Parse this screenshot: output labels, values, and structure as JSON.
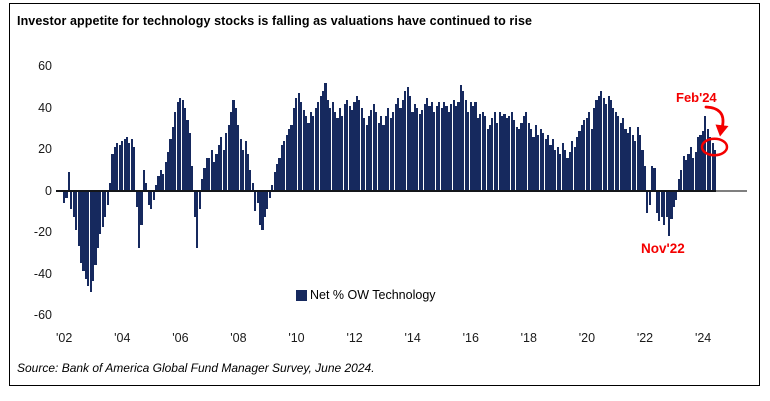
{
  "title": "Investor appetite for technology stocks is falling as valuations have continued to rise",
  "source": "Source: Bank of America Global Fund Manager Survey, June 2024.",
  "legend": {
    "label": "Net % OW Technology"
  },
  "annotations": {
    "peak_label": "Feb'24",
    "trough_label": "Nov'22",
    "annotation_color": "#f40000"
  },
  "colors": {
    "bar": "#16295e",
    "axis_line": "#14161a",
    "axis_line_extension": "#7f7f7f",
    "annotation_red": "#f40000"
  },
  "chart_data": {
    "type": "bar",
    "title": "Investor appetite for technology stocks is falling as valuations have continued to rise",
    "series_name": "Net % OW Technology",
    "frequency": "monthly",
    "start": "2002-01",
    "end": "2024-06",
    "xlabel": "",
    "ylabel": "",
    "ylim": [
      -60,
      60
    ],
    "grid": false,
    "legend_position": "bottom-center",
    "yticks": [
      60,
      40,
      20,
      0,
      -20,
      -40,
      -60
    ],
    "xticks": [
      "'02",
      "'04",
      "'06",
      "'08",
      "'10",
      "'12",
      "'14",
      "'16",
      "'18",
      "'20",
      "'22",
      "'24"
    ],
    "xtick_month_interval": 24,
    "highlights": {
      "feb_2024": 36,
      "nov_2022": -21,
      "latest_jun_2024": 20
    },
    "values": [
      -5,
      -3,
      9,
      -8,
      -12,
      -18,
      -26,
      -34,
      -38,
      -42,
      -45,
      -48,
      -43,
      -35,
      -27,
      -20,
      -17,
      -12,
      -6,
      4,
      18,
      21,
      23,
      22,
      24,
      25,
      26,
      23,
      25,
      21,
      -7,
      -27,
      -16,
      10,
      4,
      -6,
      -8,
      -4,
      3,
      7,
      10,
      8,
      14,
      19,
      25,
      31,
      38,
      43,
      45,
      44,
      40,
      34,
      28,
      12,
      -12,
      -27,
      -8,
      6,
      11,
      16,
      16,
      20,
      14,
      18,
      22,
      26,
      20,
      28,
      32,
      38,
      44,
      40,
      32,
      25,
      20,
      24,
      18,
      10,
      4,
      -9,
      -5,
      -16,
      -18,
      -12,
      -8,
      -3,
      3,
      9,
      13,
      16,
      22,
      24,
      27,
      30,
      32,
      40,
      45,
      47,
      43,
      39,
      36,
      33,
      38,
      36,
      40,
      43,
      46,
      48,
      52,
      44,
      40,
      43,
      38,
      35,
      40,
      36,
      42,
      44,
      41,
      39,
      43,
      46,
      44,
      40,
      35,
      32,
      36,
      39,
      42,
      38,
      33,
      36,
      32,
      36,
      40,
      35,
      38,
      42,
      45,
      40,
      44,
      48,
      50,
      46,
      38,
      42,
      40,
      37,
      39,
      42,
      45,
      41,
      43,
      38,
      41,
      43,
      40,
      43,
      41,
      38,
      42,
      44,
      41,
      43,
      51,
      48,
      44,
      38,
      43,
      41,
      43,
      35,
      37,
      38,
      36,
      30,
      32,
      35,
      38,
      33,
      38,
      36,
      37,
      35,
      36,
      38,
      34,
      31,
      30,
      33,
      36,
      38,
      33,
      30,
      26,
      32,
      27,
      30,
      28,
      25,
      27,
      22,
      25,
      20,
      21,
      18,
      23,
      20,
      16,
      19,
      24,
      21,
      26,
      29,
      32,
      34,
      35,
      38,
      30,
      40,
      44,
      46,
      48,
      45,
      42,
      46,
      44,
      40,
      38,
      36,
      33,
      35,
      30,
      28,
      31,
      27,
      24,
      31,
      27,
      20,
      12,
      -10,
      -6,
      12,
      11,
      -10,
      -14,
      -12,
      -16,
      -12,
      -21,
      -13,
      -7,
      -4,
      6,
      10,
      17,
      15,
      18,
      21,
      16,
      19,
      26,
      27,
      29,
      36,
      30,
      26,
      23,
      20
    ]
  }
}
